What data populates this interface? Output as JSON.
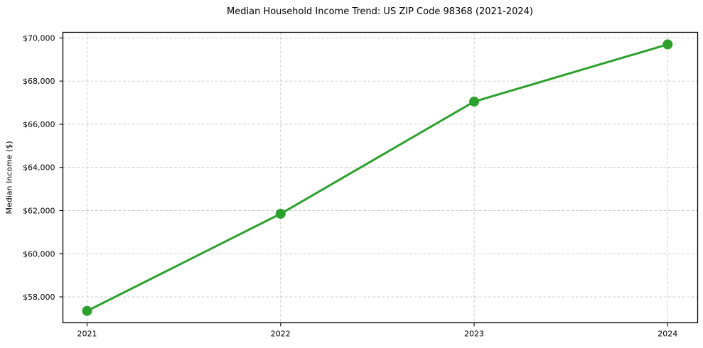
{
  "chart_data": {
    "type": "line",
    "title": "Median Household Income Trend: US ZIP Code 98368 (2021-2024)",
    "xlabel": "",
    "ylabel": "Median Income ($)",
    "categories": [
      2021,
      2022,
      2023,
      2024
    ],
    "x_tick_labels": [
      "2021",
      "2022",
      "2023",
      "2024"
    ],
    "values": [
      57350,
      61850,
      67050,
      69700
    ],
    "y_ticks": [
      58000,
      60000,
      62000,
      64000,
      66000,
      68000,
      70000
    ],
    "y_tick_labels": [
      "$58,000",
      "$60,000",
      "$62,000",
      "$64,000",
      "$66,000",
      "$68,000",
      "$70,000"
    ],
    "xlim": [
      2020.875,
      2024.155
    ],
    "ylim": [
      56800,
      70260
    ],
    "grid": true,
    "grid_style": "dashed",
    "legend": false,
    "style": {
      "line_color": "#2ca02c",
      "marker_color": "#2ca02c",
      "grid_color": "#c9c9c9",
      "axis_color": "#000000",
      "text_color": "#000000",
      "background": "#ffffff"
    }
  }
}
